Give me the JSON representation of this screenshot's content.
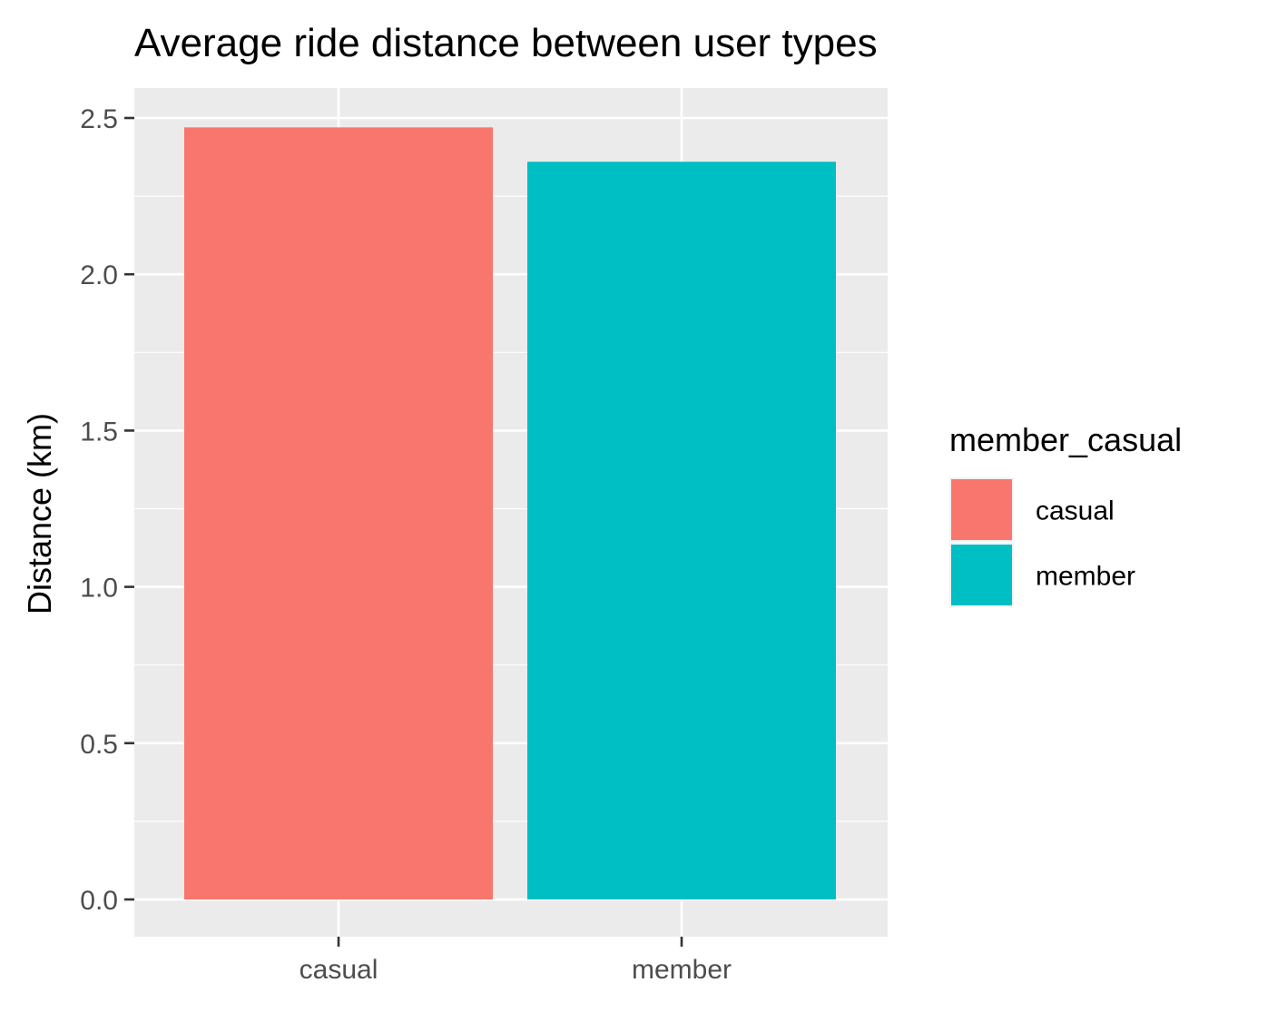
{
  "chart_data": {
    "type": "bar",
    "title": "Average ride distance between user types",
    "xlabel": "",
    "ylabel": "Distance (km)",
    "categories": [
      "casual",
      "member"
    ],
    "values": [
      2.47,
      2.36
    ],
    "ylim": [
      0,
      2.6
    ],
    "yticks": [
      "0.0",
      "0.5",
      "1.0",
      "1.5",
      "2.0",
      "2.5"
    ],
    "grid": true,
    "legend": {
      "title": "member_casual",
      "placement": "right",
      "items": [
        {
          "label": "casual",
          "color": "#F8766D"
        },
        {
          "label": "member",
          "color": "#00BFC4"
        }
      ]
    },
    "colors": {
      "panel_background": "#EBEBEB",
      "grid_major": "#FFFFFF",
      "tick_text": "#4D4D4D",
      "tick_mark": "#333333"
    }
  }
}
